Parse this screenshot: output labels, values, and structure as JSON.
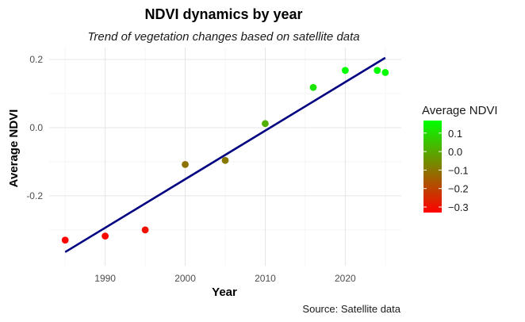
{
  "chart_data": {
    "type": "scatter",
    "title": "NDVI dynamics by year",
    "subtitle": "Trend of vegetation changes based on satellite data",
    "xlabel": "Year",
    "ylabel": "Average NDVI",
    "caption": "Source: Satellite data",
    "xlim": [
      1983,
      2027
    ],
    "ylim": [
      -0.405,
      0.235
    ],
    "x_ticks": [
      1990,
      2000,
      2010,
      2020
    ],
    "y_ticks": [
      -0.2,
      0.0,
      0.2
    ],
    "x_tick_labels": [
      "1990",
      "2000",
      "2010",
      "2020"
    ],
    "y_tick_labels": [
      "-0.2",
      "0.0",
      "0.2"
    ],
    "grid": true,
    "points": [
      {
        "x": 1985,
        "y": -0.33
      },
      {
        "x": 1990,
        "y": -0.318
      },
      {
        "x": 1995,
        "y": -0.3
      },
      {
        "x": 2000,
        "y": -0.108
      },
      {
        "x": 2005,
        "y": -0.096
      },
      {
        "x": 2010,
        "y": 0.012
      },
      {
        "x": 2016,
        "y": 0.118
      },
      {
        "x": 2020,
        "y": 0.168
      },
      {
        "x": 2024,
        "y": 0.168
      },
      {
        "x": 2025,
        "y": 0.162
      }
    ],
    "trend_line": {
      "color": "#000080",
      "x": [
        1985,
        2025
      ],
      "y": [
        -0.365,
        0.205
      ]
    },
    "legend": {
      "title": "Average NDVI",
      "position": "right",
      "ticks": [
        0.1,
        0.0,
        -0.1,
        -0.2,
        -0.3
      ],
      "tick_labels": [
        "0.1",
        "0.0",
        "−0.1",
        "−0.2",
        "−0.3"
      ],
      "min": -0.33,
      "max": 0.168,
      "colors": [
        "#ff0000",
        "#00ff00"
      ]
    }
  }
}
